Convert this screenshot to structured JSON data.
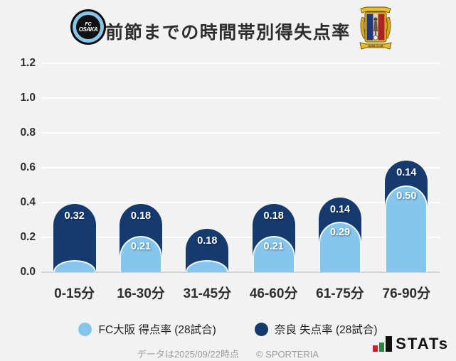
{
  "header": {
    "title": "前節までの時間帯別得失点率",
    "left_logo": {
      "name": "FC大阪",
      "line1": "FC",
      "line2": "OSAKA"
    },
    "right_logo": {
      "name": "奈良クラブ",
      "banner": "NARA CLUB"
    }
  },
  "chart_data": {
    "type": "bar",
    "stacked": true,
    "title": "前節までの時間帯別得失点率",
    "categories": [
      "0-15分",
      "16-30分",
      "31-45分",
      "46-60分",
      "61-75分",
      "76-90分"
    ],
    "series": [
      {
        "name": "FC大阪 得点率 (28試合)",
        "color": "#86C5EC",
        "values": [
          0.07,
          0.21,
          0.07,
          0.21,
          0.29,
          0.5
        ],
        "labels": [
          "",
          "0.21",
          "",
          "0.21",
          "0.29",
          "0.50"
        ]
      },
      {
        "name": "奈良 失点率 (28試合)",
        "color": "#153A6D",
        "values": [
          0.32,
          0.18,
          0.18,
          0.18,
          0.14,
          0.14
        ],
        "labels": [
          "0.32",
          "0.18",
          "0.18",
          "0.18",
          "0.14",
          "0.14"
        ]
      }
    ],
    "y_ticks": [
      "0.0",
      "0.2",
      "0.4",
      "0.6",
      "0.8",
      "1.0",
      "1.2"
    ],
    "ylim": [
      0,
      1.2
    ],
    "grid": true,
    "legend_position": "bottom"
  },
  "footer": {
    "data_note": "データは2025/09/22時点",
    "copyright": "© SPORTERIA",
    "stats_logo_text": "STATs"
  }
}
